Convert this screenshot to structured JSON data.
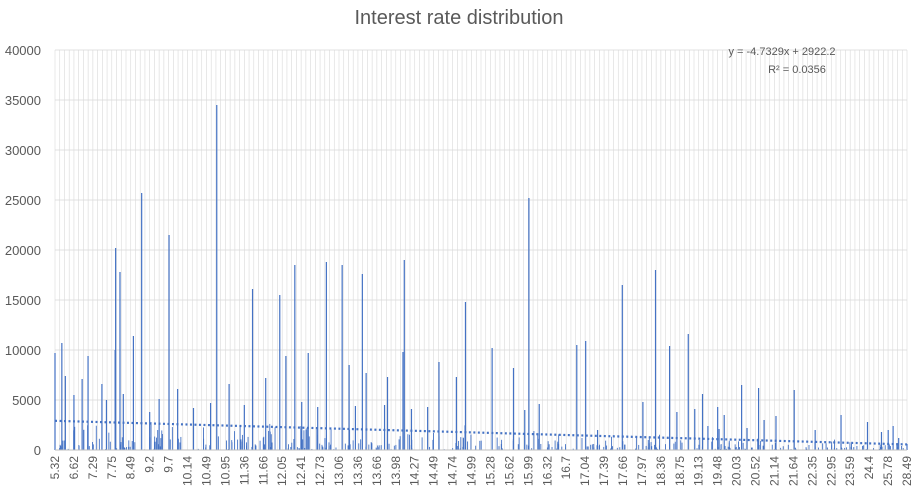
{
  "chart_data": {
    "type": "bar",
    "title": "Interest rate distribution",
    "xlabel": "",
    "ylabel": "",
    "ylim": [
      0,
      40000
    ],
    "yticks": [
      0,
      5000,
      10000,
      15000,
      20000,
      25000,
      30000,
      35000,
      40000
    ],
    "x_tick_labels": [
      "5.32",
      "6.62",
      "7.29",
      "7.75",
      "8.49",
      "9.2",
      "9.7",
      "10.14",
      "10.49",
      "10.95",
      "11.36",
      "11.66",
      "12.05",
      "12.41",
      "12.73",
      "13.06",
      "13.36",
      "13.66",
      "13.98",
      "14.27",
      "14.49",
      "14.74",
      "14.99",
      "15.28",
      "15.62",
      "15.99",
      "16.32",
      "16.7",
      "17.04",
      "17.39",
      "17.66",
      "17.97",
      "18.36",
      "18.75",
      "19.13",
      "19.48",
      "20.03",
      "20.52",
      "21.14",
      "21.64",
      "22.35",
      "22.95",
      "23.59",
      "24.4",
      "25.78",
      "28.49"
    ],
    "grid": true,
    "legend": "none",
    "series_color": "#4472C4",
    "trendline": {
      "type": "linear",
      "slope": -4.7329,
      "intercept": 2922.2,
      "equation_label": "y = -4.7329x + 2922.2",
      "r2_label": "R² = 0.0356",
      "style": "dotted"
    },
    "x_category_count": 500,
    "peaks": [
      {
        "x": "5.32",
        "value": 9700
      },
      {
        "x": "5.79",
        "value": 10700
      },
      {
        "x": "6.03",
        "value": 7400
      },
      {
        "x": "6.62",
        "value": 5500
      },
      {
        "x": "6.91",
        "value": 7100
      },
      {
        "x": "7.12",
        "value": 9400
      },
      {
        "x": "7.51",
        "value": 6600
      },
      {
        "x": "7.62",
        "value": 5000
      },
      {
        "x": "7.90",
        "value": 20200
      },
      {
        "x": "7.88",
        "value": 10000
      },
      {
        "x": "8.07",
        "value": 17800
      },
      {
        "x": "8.20",
        "value": 5600
      },
      {
        "x": "8.59",
        "value": 11400
      },
      {
        "x": "8.90",
        "value": 25700
      },
      {
        "x": "9.20",
        "value": 3800
      },
      {
        "x": "9.45",
        "value": 5100
      },
      {
        "x": "9.71",
        "value": 21500
      },
      {
        "x": "9.91",
        "value": 6100
      },
      {
        "x": "10.25",
        "value": 4200
      },
      {
        "x": "10.59",
        "value": 4700
      },
      {
        "x": "10.74",
        "value": 34500
      },
      {
        "x": "11.03",
        "value": 6600
      },
      {
        "x": "11.36",
        "value": 4500
      },
      {
        "x": "11.49",
        "value": 16100
      },
      {
        "x": "11.71",
        "value": 7200
      },
      {
        "x": "12.00",
        "value": 15500
      },
      {
        "x": "12.12",
        "value": 9400
      },
      {
        "x": "12.29",
        "value": 18500
      },
      {
        "x": "12.42",
        "value": 4800
      },
      {
        "x": "12.53",
        "value": 9700
      },
      {
        "x": "12.69",
        "value": 4300
      },
      {
        "x": "12.84",
        "value": 18800
      },
      {
        "x": "13.11",
        "value": 18500
      },
      {
        "x": "13.22",
        "value": 8500
      },
      {
        "x": "13.32",
        "value": 4400
      },
      {
        "x": "13.43",
        "value": 17600
      },
      {
        "x": "13.49",
        "value": 7700
      },
      {
        "x": "13.79",
        "value": 4500
      },
      {
        "x": "13.84",
        "value": 7300
      },
      {
        "x": "14.09",
        "value": 9800
      },
      {
        "x": "14.11",
        "value": 19000
      },
      {
        "x": "14.22",
        "value": 4100
      },
      {
        "x": "14.42",
        "value": 4300
      },
      {
        "x": "14.56",
        "value": 8800
      },
      {
        "x": "14.79",
        "value": 7300
      },
      {
        "x": "14.91",
        "value": 14800
      },
      {
        "x": "15.31",
        "value": 10200
      },
      {
        "x": "15.70",
        "value": 8200
      },
      {
        "x": "15.92",
        "value": 4000
      },
      {
        "x": "16.00",
        "value": 25200
      },
      {
        "x": "16.18",
        "value": 4600
      },
      {
        "x": "16.89",
        "value": 10500
      },
      {
        "x": "17.05",
        "value": 10900
      },
      {
        "x": "17.27",
        "value": 2000
      },
      {
        "x": "17.65",
        "value": 16500
      },
      {
        "x": "17.99",
        "value": 4800
      },
      {
        "x": "18.25",
        "value": 18000
      },
      {
        "x": "18.54",
        "value": 10400
      },
      {
        "x": "18.69",
        "value": 3800
      },
      {
        "x": "18.92",
        "value": 11600
      },
      {
        "x": "19.05",
        "value": 4100
      },
      {
        "x": "19.20",
        "value": 5600
      },
      {
        "x": "19.30",
        "value": 2400
      },
      {
        "x": "19.48",
        "value": 4300
      },
      {
        "x": "19.52",
        "value": 2100
      },
      {
        "x": "19.67",
        "value": 3500
      },
      {
        "x": "20.16",
        "value": 6500
      },
      {
        "x": "20.30",
        "value": 2200
      },
      {
        "x": "20.62",
        "value": 6200
      },
      {
        "x": "20.80",
        "value": 3000
      },
      {
        "x": "21.18",
        "value": 3400
      },
      {
        "x": "21.67",
        "value": 6000
      },
      {
        "x": "22.44",
        "value": 2000
      },
      {
        "x": "23.28",
        "value": 3500
      },
      {
        "x": "24.33",
        "value": 2800
      },
      {
        "x": "25.30",
        "value": 1800
      },
      {
        "x": "25.80",
        "value": 2000
      },
      {
        "x": "26.50",
        "value": 2400
      },
      {
        "x": "27.30",
        "value": 1200
      },
      {
        "x": "28.49",
        "value": 600
      }
    ]
  }
}
